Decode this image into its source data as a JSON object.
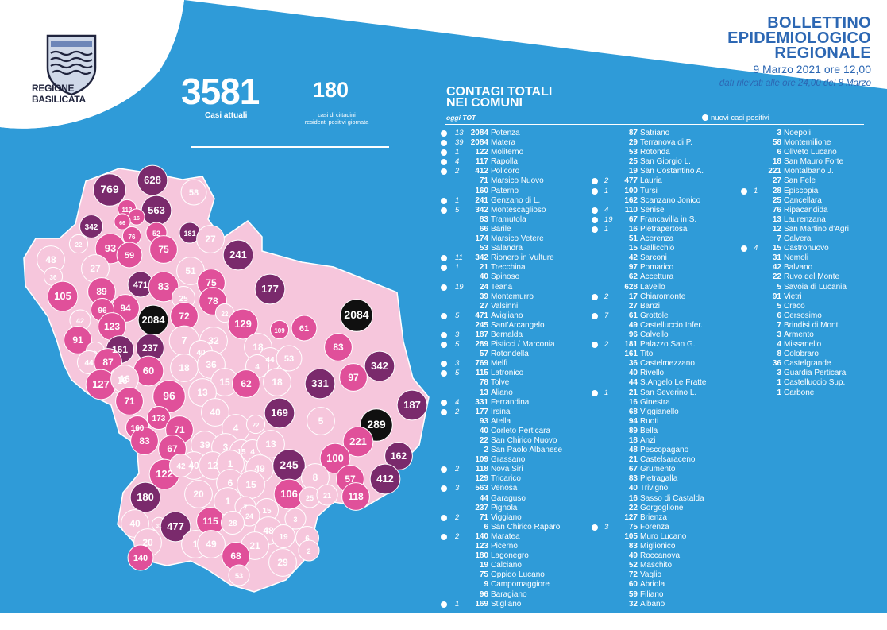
{
  "region": {
    "name_line1": "REGIONE",
    "name_line2": "BASILICATA"
  },
  "title": {
    "line1": "BOLLETTINO",
    "line2": "EPIDEMIOLOGICO",
    "line3": "REGIONALE"
  },
  "date": "9 Marzo 2021 ore 12,00",
  "note": "dati rilevati alle ore 24,00 del 8 Marzo",
  "current_cases": {
    "value": "3581",
    "label": "Casi attuali"
  },
  "daily_positive": {
    "value": "180",
    "label_line1": "casi di cittadini",
    "label_line2": "residenti positivi giornata"
  },
  "contagi": {
    "title_line1": "CONTAGI TOTALI",
    "title_line2": "NEI COMUNI",
    "subheader": "oggi  TOT",
    "legend": "nuovi casi positivi"
  },
  "colors": {
    "background": "#2f9bd8",
    "title_blue": "#2c67b3",
    "map_light": "#f6c6dc",
    "map_mid": "#e0509a",
    "map_dark": "#7a2a6c",
    "map_darkest": "#101010"
  },
  "municipalities_col1": [
    {
      "new": "13",
      "tot": "2084",
      "name": "Potenza"
    },
    {
      "new": "39",
      "tot": "2084",
      "name": "Matera"
    },
    {
      "new": "1",
      "tot": "122",
      "name": "Moliterno"
    },
    {
      "new": "4",
      "tot": "117",
      "name": "Rapolla"
    },
    {
      "new": "2",
      "tot": "412",
      "name": "Policoro"
    },
    {
      "new": "",
      "tot": "71",
      "name": "Marsico Nuovo"
    },
    {
      "new": "",
      "tot": "160",
      "name": "Paterno"
    },
    {
      "new": "1",
      "tot": "241",
      "name": "Genzano di L."
    },
    {
      "new": "5",
      "tot": "342",
      "name": "Montescaglioso"
    },
    {
      "new": "",
      "tot": "83",
      "name": "Tramutola"
    },
    {
      "new": "",
      "tot": "66",
      "name": "Barile"
    },
    {
      "new": "",
      "tot": "174",
      "name": "Marsico Vetere"
    },
    {
      "new": "",
      "tot": "53",
      "name": "Salandra"
    },
    {
      "new": "11",
      "tot": "342",
      "name": "Rionero in Vulture"
    },
    {
      "new": "1",
      "tot": "21",
      "name": "Trecchina"
    },
    {
      "new": "",
      "tot": "40",
      "name": "Spinoso"
    },
    {
      "new": "19",
      "tot": "24",
      "name": "Teana"
    },
    {
      "new": "",
      "tot": "39",
      "name": "Montemurro"
    },
    {
      "new": "",
      "tot": "27",
      "name": "Valsinni"
    },
    {
      "new": "5",
      "tot": "471",
      "name": "Avigliano"
    },
    {
      "new": "",
      "tot": "245",
      "name": "Sant'Arcangelo"
    },
    {
      "new": "3",
      "tot": "187",
      "name": "Bernalda"
    },
    {
      "new": "5",
      "tot": "289",
      "name": "Pisticci / Marconia"
    },
    {
      "new": "",
      "tot": "57",
      "name": "Rotondella"
    },
    {
      "new": "3",
      "tot": "769",
      "name": "Melfi"
    },
    {
      "new": "5",
      "tot": "115",
      "name": "Latronico"
    },
    {
      "new": "",
      "tot": "78",
      "name": "Tolve"
    },
    {
      "new": "",
      "tot": "13",
      "name": "Aliano"
    },
    {
      "new": "4",
      "tot": "331",
      "name": "Ferrandina"
    },
    {
      "new": "2",
      "tot": "177",
      "name": "Irsina"
    },
    {
      "new": "",
      "tot": "93",
      "name": "Atella"
    },
    {
      "new": "",
      "tot": "40",
      "name": "Corleto Perticara"
    },
    {
      "new": "",
      "tot": "22",
      "name": "San Chirico Nuovo"
    },
    {
      "new": "",
      "tot": "2",
      "name": "San Paolo Albanese"
    },
    {
      "new": "",
      "tot": "109",
      "name": "Grassano"
    },
    {
      "new": "2",
      "tot": "118",
      "name": "Nova Siri"
    },
    {
      "new": "",
      "tot": "129",
      "name": "Tricarico"
    },
    {
      "new": "3",
      "tot": "563",
      "name": "Venosa"
    },
    {
      "new": "",
      "tot": "44",
      "name": "Garaguso"
    },
    {
      "new": "",
      "tot": "237",
      "name": "Pignola"
    },
    {
      "new": "2",
      "tot": "71",
      "name": "Viggiano"
    },
    {
      "new": "",
      "tot": "6",
      "name": "San Chirico Raparo"
    },
    {
      "new": "2",
      "tot": "140",
      "name": "Maratea"
    },
    {
      "new": "",
      "tot": "123",
      "name": "Picerno"
    },
    {
      "new": "",
      "tot": "180",
      "name": "Lagonegro"
    },
    {
      "new": "",
      "tot": "19",
      "name": "Calciano"
    },
    {
      "new": "",
      "tot": "75",
      "name": "Oppido Lucano"
    },
    {
      "new": "",
      "tot": "9",
      "name": "Campomaggiore"
    },
    {
      "new": "",
      "tot": "96",
      "name": "Baragiano"
    },
    {
      "new": "1",
      "tot": "169",
      "name": "Stigliano"
    }
  ],
  "municipalities_col2": [
    {
      "new": "",
      "tot": "87",
      "name": "Satriano"
    },
    {
      "new": "",
      "tot": "29",
      "name": "Terranova di P."
    },
    {
      "new": "",
      "tot": "53",
      "name": "Rotonda"
    },
    {
      "new": "",
      "tot": "25",
      "name": "San Giorgio L."
    },
    {
      "new": "",
      "tot": "19",
      "name": "San Costantino A."
    },
    {
      "new": "2",
      "tot": "477",
      "name": "Lauria"
    },
    {
      "new": "1",
      "tot": "100",
      "name": "Tursi"
    },
    {
      "new": "",
      "tot": "162",
      "name": "Scanzano Jonico"
    },
    {
      "new": "4",
      "tot": "110",
      "name": "Senise"
    },
    {
      "new": "19",
      "tot": "67",
      "name": "Francavilla in S."
    },
    {
      "new": "1",
      "tot": "16",
      "name": "Pietrapertosa"
    },
    {
      "new": "",
      "tot": "51",
      "name": "Acerenza"
    },
    {
      "new": "",
      "tot": "15",
      "name": "Gallicchio"
    },
    {
      "new": "",
      "tot": "42",
      "name": "Sarconi"
    },
    {
      "new": "",
      "tot": "97",
      "name": "Pomarico"
    },
    {
      "new": "",
      "tot": "62",
      "name": "Accettura"
    },
    {
      "new": "",
      "tot": "628",
      "name": "Lavello"
    },
    {
      "new": "2",
      "tot": "17",
      "name": "Chiaromonte"
    },
    {
      "new": "",
      "tot": "27",
      "name": "Banzi"
    },
    {
      "new": "7",
      "tot": "61",
      "name": "Grottole"
    },
    {
      "new": "",
      "tot": "49",
      "name": "Castelluccio Infer."
    },
    {
      "new": "",
      "tot": "96",
      "name": "Calvello"
    },
    {
      "new": "2",
      "tot": "181",
      "name": "Palazzo San G."
    },
    {
      "new": "",
      "tot": "161",
      "name": "Tito"
    },
    {
      "new": "",
      "tot": "36",
      "name": "Castelmezzano"
    },
    {
      "new": "",
      "tot": "40",
      "name": "Rivello"
    },
    {
      "new": "",
      "tot": "44",
      "name": "S.Angelo Le Fratte"
    },
    {
      "new": "1",
      "tot": "21",
      "name": "San Severino L."
    },
    {
      "new": "",
      "tot": "16",
      "name": "Ginestra"
    },
    {
      "new": "",
      "tot": "68",
      "name": "Viggianello"
    },
    {
      "new": "",
      "tot": "94",
      "name": "Ruoti"
    },
    {
      "new": "",
      "tot": "89",
      "name": "Bella"
    },
    {
      "new": "",
      "tot": "18",
      "name": "Anzi"
    },
    {
      "new": "",
      "tot": "48",
      "name": "Pescopagano"
    },
    {
      "new": "",
      "tot": "21",
      "name": "Castelsaraceno"
    },
    {
      "new": "",
      "tot": "67",
      "name": "Grumento"
    },
    {
      "new": "",
      "tot": "83",
      "name": "Pietragalla"
    },
    {
      "new": "",
      "tot": "40",
      "name": "Trivigno"
    },
    {
      "new": "",
      "tot": "16",
      "name": "Sasso di Castalda"
    },
    {
      "new": "",
      "tot": "22",
      "name": "Gorgoglione"
    },
    {
      "new": "",
      "tot": "127",
      "name": "Brienza"
    },
    {
      "new": "3",
      "tot": "75",
      "name": "Forenza"
    },
    {
      "new": "",
      "tot": "105",
      "name": "Muro Lucano"
    },
    {
      "new": "",
      "tot": "83",
      "name": "Miglionico"
    },
    {
      "new": "",
      "tot": "49",
      "name": "Roccanova"
    },
    {
      "new": "",
      "tot": "52",
      "name": "Maschito"
    },
    {
      "new": "",
      "tot": "72",
      "name": "Vaglio"
    },
    {
      "new": "",
      "tot": "60",
      "name": "Abriola"
    },
    {
      "new": "",
      "tot": "59",
      "name": "Filiano"
    },
    {
      "new": "",
      "tot": "32",
      "name": "Albano"
    }
  ],
  "municipalities_col3": [
    {
      "new": "",
      "tot": "3",
      "name": "Noepoli"
    },
    {
      "new": "",
      "tot": "58",
      "name": "Montemilione"
    },
    {
      "new": "",
      "tot": "6",
      "name": "Oliveto Lucano"
    },
    {
      "new": "",
      "tot": "18",
      "name": "San Mauro Forte"
    },
    {
      "new": "",
      "tot": "221",
      "name": "Montalbano J."
    },
    {
      "new": "",
      "tot": "27",
      "name": "San Fele"
    },
    {
      "new": "1",
      "tot": "28",
      "name": "Episcopia"
    },
    {
      "new": "",
      "tot": "25",
      "name": "Cancellara"
    },
    {
      "new": "",
      "tot": "76",
      "name": "Ripacandida"
    },
    {
      "new": "",
      "tot": "13",
      "name": "Laurenzana"
    },
    {
      "new": "",
      "tot": "12",
      "name": "San Martino d'Agri"
    },
    {
      "new": "",
      "tot": "7",
      "name": "Calvera"
    },
    {
      "new": "4",
      "tot": "15",
      "name": "Castronuovo"
    },
    {
      "new": "",
      "tot": "31",
      "name": "Nemoli"
    },
    {
      "new": "",
      "tot": "42",
      "name": "Balvano"
    },
    {
      "new": "",
      "tot": "22",
      "name": "Ruvo del Monte"
    },
    {
      "new": "",
      "tot": "5",
      "name": "Savoia di Lucania"
    },
    {
      "new": "",
      "tot": "91",
      "name": "Vietri"
    },
    {
      "new": "",
      "tot": "5",
      "name": "Craco"
    },
    {
      "new": "",
      "tot": "6",
      "name": "Cersosimo"
    },
    {
      "new": "",
      "tot": "7",
      "name": "Brindisi di Mont."
    },
    {
      "new": "",
      "tot": "3",
      "name": "Armento"
    },
    {
      "new": "",
      "tot": "4",
      "name": "Missanello"
    },
    {
      "new": "",
      "tot": "8",
      "name": "Colobraro"
    },
    {
      "new": "",
      "tot": "36",
      "name": "Castelgrande"
    },
    {
      "new": "",
      "tot": "3",
      "name": "Guardia Perticara"
    },
    {
      "new": "",
      "tot": "1",
      "name": "Castelluccio Sup."
    },
    {
      "new": "",
      "tot": "1",
      "name": "Carbone"
    }
  ],
  "map_labels": [
    {
      "v": "769",
      "c": "dark"
    },
    {
      "v": "628",
      "c": "dark"
    },
    {
      "v": "58",
      "c": "light"
    },
    {
      "v": "563",
      "c": "dark"
    },
    {
      "v": "113",
      "c": "mid"
    },
    {
      "v": "16",
      "c": "mid"
    },
    {
      "v": "342",
      "c": "dark"
    },
    {
      "v": "66",
      "c": "mid"
    },
    {
      "v": "76",
      "c": "mid"
    },
    {
      "v": "52",
      "c": "mid"
    },
    {
      "v": "181",
      "c": "dark"
    },
    {
      "v": "27",
      "c": "light"
    },
    {
      "v": "22",
      "c": "light"
    },
    {
      "v": "93",
      "c": "mid"
    },
    {
      "v": "59",
      "c": "mid"
    },
    {
      "v": "75",
      "c": "mid"
    },
    {
      "v": "241",
      "c": "dark"
    },
    {
      "v": "48",
      "c": "light"
    },
    {
      "v": "27",
      "c": "light"
    },
    {
      "v": "51",
      "c": "light"
    },
    {
      "v": "36",
      "c": "light"
    },
    {
      "v": "471",
      "c": "dark"
    },
    {
      "v": "83",
      "c": "mid"
    },
    {
      "v": "75",
      "c": "mid"
    },
    {
      "v": "177",
      "c": "dark"
    },
    {
      "v": "105",
      "c": "mid"
    },
    {
      "v": "89",
      "c": "mid"
    },
    {
      "v": "25",
      "c": "light"
    },
    {
      "v": "78",
      "c": "mid"
    },
    {
      "v": "94",
      "c": "mid"
    },
    {
      "v": "96",
      "c": "mid"
    },
    {
      "v": "2084",
      "c": "black"
    },
    {
      "v": "72",
      "c": "mid"
    },
    {
      "v": "22",
      "c": "light"
    },
    {
      "v": "2084",
      "c": "black"
    },
    {
      "v": "42",
      "c": "light"
    },
    {
      "v": "123",
      "c": "mid"
    },
    {
      "v": "129",
      "c": "mid"
    },
    {
      "v": "109",
      "c": "mid"
    },
    {
      "v": "61",
      "c": "mid"
    },
    {
      "v": "91",
      "c": "mid"
    },
    {
      "v": "7",
      "c": "light"
    },
    {
      "v": "32",
      "c": "light"
    },
    {
      "v": "5",
      "c": "light"
    },
    {
      "v": "161",
      "c": "dark"
    },
    {
      "v": "237",
      "c": "dark"
    },
    {
      "v": "40",
      "c": "light"
    },
    {
      "v": "18",
      "c": "light"
    },
    {
      "v": "83",
      "c": "mid"
    },
    {
      "v": "44",
      "c": "light"
    },
    {
      "v": "87",
      "c": "mid"
    },
    {
      "v": "16",
      "c": "light"
    },
    {
      "v": "44",
      "c": "light"
    },
    {
      "v": "53",
      "c": "light"
    },
    {
      "v": "342",
      "c": "dark"
    },
    {
      "v": "60",
      "c": "mid"
    },
    {
      "v": "18",
      "c": "light"
    },
    {
      "v": "36",
      "c": "light"
    },
    {
      "v": "4",
      "c": "light"
    },
    {
      "v": "97",
      "c": "mid"
    },
    {
      "v": "127",
      "c": "mid"
    },
    {
      "v": "16",
      "c": "light"
    },
    {
      "v": "15",
      "c": "light"
    },
    {
      "v": "62",
      "c": "mid"
    },
    {
      "v": "18",
      "c": "light"
    },
    {
      "v": "331",
      "c": "dark"
    },
    {
      "v": "13",
      "c": "light"
    },
    {
      "v": "96",
      "c": "mid"
    },
    {
      "v": "71",
      "c": "mid"
    },
    {
      "v": "187",
      "c": "dark"
    },
    {
      "v": "40",
      "c": "light"
    },
    {
      "v": "169",
      "c": "dark"
    },
    {
      "v": "173",
      "c": "mid"
    },
    {
      "v": "5",
      "c": "light"
    },
    {
      "v": "289",
      "c": "black"
    },
    {
      "v": "160",
      "c": "mid"
    },
    {
      "v": "71",
      "c": "mid"
    },
    {
      "v": "4",
      "c": "light"
    },
    {
      "v": "22",
      "c": "light"
    },
    {
      "v": "83",
      "c": "mid"
    },
    {
      "v": "39",
      "c": "light"
    },
    {
      "v": "3",
      "c": "light"
    },
    {
      "v": "15",
      "c": "light"
    },
    {
      "v": "4",
      "c": "light"
    },
    {
      "v": "13",
      "c": "light"
    },
    {
      "v": "221",
      "c": "mid"
    },
    {
      "v": "67",
      "c": "mid"
    },
    {
      "v": "162",
      "c": "dark"
    },
    {
      "v": "40",
      "c": "light"
    },
    {
      "v": "12",
      "c": "light"
    },
    {
      "v": "1",
      "c": "light"
    },
    {
      "v": "49",
      "c": "light"
    },
    {
      "v": "245",
      "c": "dark"
    },
    {
      "v": "100",
      "c": "mid"
    },
    {
      "v": "122",
      "c": "mid"
    },
    {
      "v": "42",
      "c": "light"
    },
    {
      "v": "412",
      "c": "dark"
    },
    {
      "v": "6",
      "c": "light"
    },
    {
      "v": "15",
      "c": "light"
    },
    {
      "v": "8",
      "c": "light"
    },
    {
      "v": "57",
      "c": "mid"
    },
    {
      "v": "180",
      "c": "dark"
    },
    {
      "v": "20",
      "c": "light"
    },
    {
      "v": "106",
      "c": "mid"
    },
    {
      "v": "118",
      "c": "mid"
    },
    {
      "v": "1",
      "c": "light"
    },
    {
      "v": "7",
      "c": "light"
    },
    {
      "v": "15",
      "c": "light"
    },
    {
      "v": "25",
      "c": "light"
    },
    {
      "v": "21",
      "c": "light"
    },
    {
      "v": "24",
      "c": "light"
    },
    {
      "v": "3",
      "c": "light"
    },
    {
      "v": "40",
      "c": "light"
    },
    {
      "v": "31",
      "c": "light"
    },
    {
      "v": "477",
      "c": "dark"
    },
    {
      "v": "115",
      "c": "mid"
    },
    {
      "v": "28",
      "c": "light"
    },
    {
      "v": "48",
      "c": "light"
    },
    {
      "v": "19",
      "c": "light"
    },
    {
      "v": "20",
      "c": "light"
    },
    {
      "v": "1",
      "c": "light"
    },
    {
      "v": "49",
      "c": "light"
    },
    {
      "v": "21",
      "c": "light"
    },
    {
      "v": "6",
      "c": "light"
    },
    {
      "v": "2",
      "c": "light"
    },
    {
      "v": "140",
      "c": "mid"
    },
    {
      "v": "68",
      "c": "mid"
    },
    {
      "v": "29",
      "c": "light"
    },
    {
      "v": "53",
      "c": "light"
    }
  ]
}
